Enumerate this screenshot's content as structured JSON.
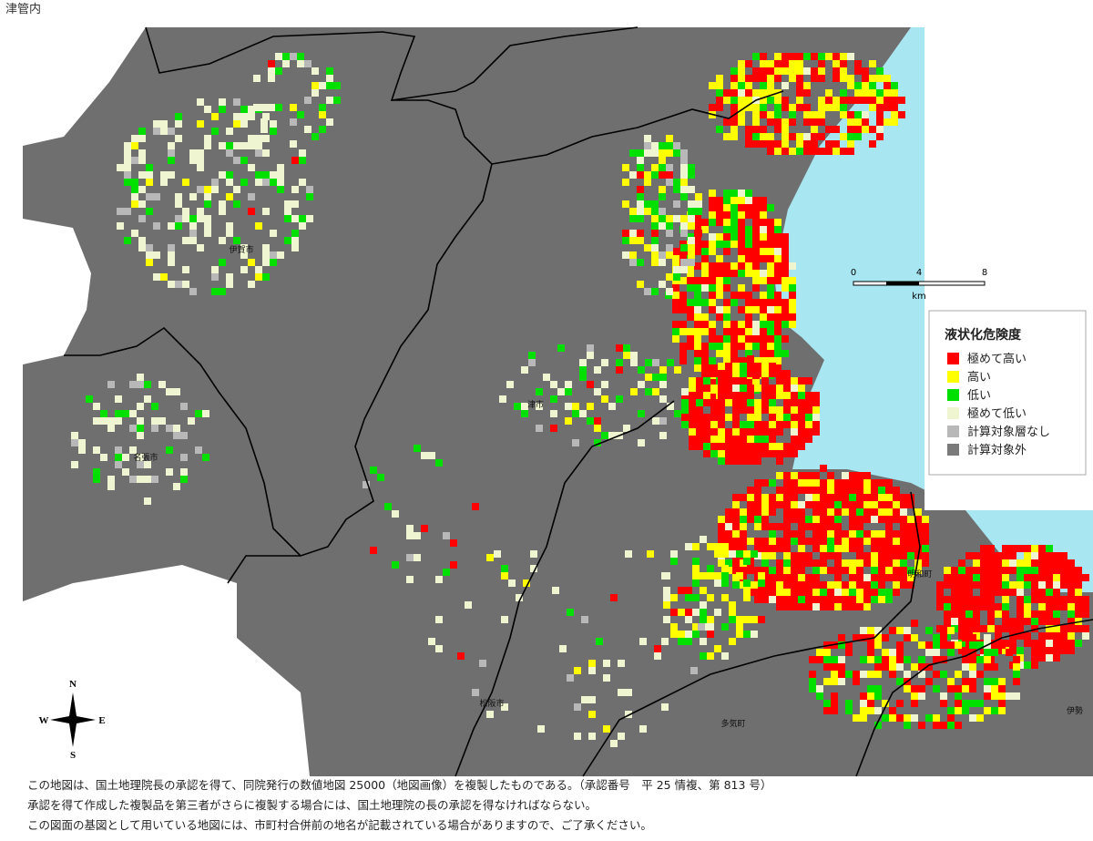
{
  "header": {
    "title": "津管内"
  },
  "legend": {
    "title": "液状化危険度",
    "items": [
      {
        "label": "極めて高い",
        "color": "#ff0000"
      },
      {
        "label": "高い",
        "color": "#ffff00"
      },
      {
        "label": "低い",
        "color": "#00e000"
      },
      {
        "label": "極めて低い",
        "color": "#eef5d0"
      },
      {
        "label": "計算対象層なし",
        "color": "#b8b8b8"
      },
      {
        "label": "計算対象外",
        "color": "#7a7a7a"
      }
    ]
  },
  "scale": {
    "ticks": [
      "0",
      "4",
      "8"
    ],
    "unit": "km"
  },
  "compass": {
    "north": "N",
    "south": "S",
    "east": "E",
    "west": "W"
  },
  "places": [
    "伊賀市",
    "名張市",
    "津市",
    "松阪市",
    "多気町",
    "明和町",
    "伊勢"
  ],
  "notes": [
    "この地図は、国土地理院長の承認を得て、同院発行の数値地図 25000（地図画像）を複製したものである。（承認番号　平 25 情複、第 813 号）",
    "承認を得て作成した複製品を第三者がさらに複製する場合には、国土地理院の長の承認を得なければならない。",
    "この図面の基図として用いている地図には、市町村合併前の地名が記載されている場合がありますので、ご了承ください。"
  ]
}
